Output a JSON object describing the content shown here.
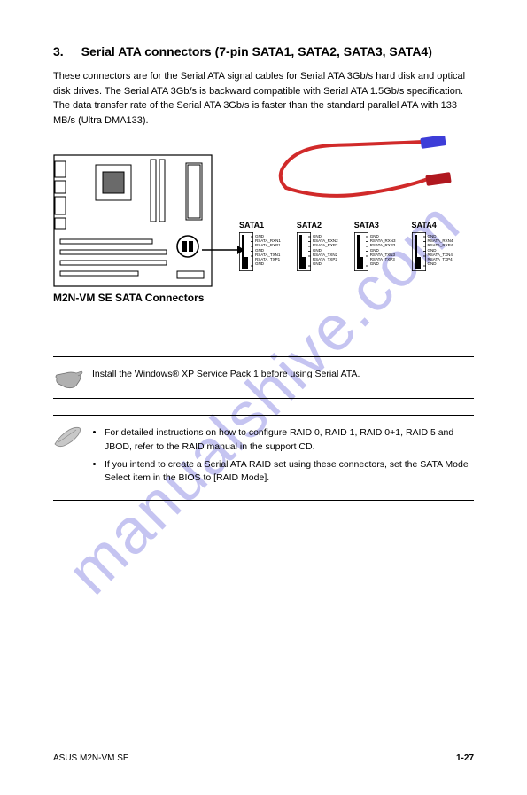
{
  "section": {
    "number": "3.",
    "title": "Serial ATA connectors (7-pin SATA1, SATA2, SATA3, SATA4)",
    "paragraph": "These connectors are for the Serial ATA signal cables for Serial ATA 3Gb/s hard disk and optical disk drives. The Serial ATA 3Gb/s is backward compatible with Serial ATA 1.5Gb/s specification. The data transfer rate of the Serial ATA 3Gb/s is faster than the standard parallel ATA with 133 MB/s (Ultra DMA133)."
  },
  "figure": {
    "caption": "M2N-VM SE SATA Connectors",
    "connectors": [
      {
        "label": "SATA1",
        "pins": [
          "GND",
          "RSATA_RXN1",
          "RSATA_RXP1",
          "GND",
          "RSATA_TXN1",
          "RSATA_TXP1",
          "GND"
        ]
      },
      {
        "label": "SATA2",
        "pins": [
          "GND",
          "RSATA_RXN2",
          "RSATA_RXP2",
          "GND",
          "RSATA_TXN2",
          "RSATA_TXP2",
          "GND"
        ]
      },
      {
        "label": "SATA3",
        "pins": [
          "GND",
          "RSATA_RXN3",
          "RSATA_RXP3",
          "GND",
          "RSATA_TXN3",
          "RSATA_TXP3",
          "GND"
        ]
      },
      {
        "label": "SATA4",
        "pins": [
          "GND",
          "RSATA_RXN4",
          "RSATA_RXP4",
          "GND",
          "RSATA_TXN4",
          "RSATA_TXP4",
          "GND"
        ]
      }
    ]
  },
  "important_note": "Install the Windows® XP Service Pack 1 before using Serial ATA.",
  "tips": [
    "For detailed instructions on how to configure RAID 0, RAID 1, RAID 0+1, RAID 5 and JBOD, refer to the RAID manual in the support CD.",
    "If you intend to create a Serial ATA RAID set using these connectors, set the SATA Mode Select item in the BIOS to [RAID Mode]."
  ],
  "footer": {
    "left": "ASUS M2N-VM SE",
    "right": "1-27"
  },
  "colors": {
    "watermark": "rgba(88,86,214,0.35)",
    "cable_red": "#d12a2a",
    "cable_end_red": "#b0181f",
    "cable_end_blue": "#3d3dd8",
    "hand_fill": "#b0b0b0",
    "pen_fill": "#c8c8c8"
  }
}
